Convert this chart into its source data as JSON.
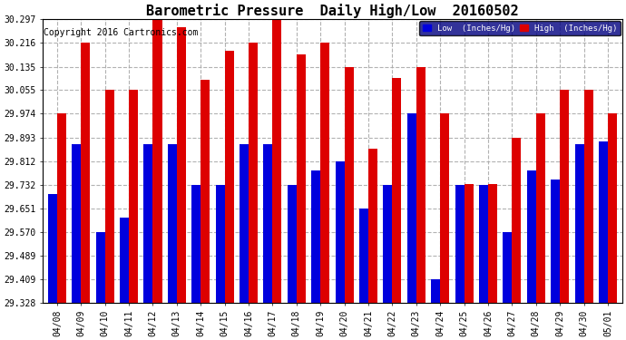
{
  "title": "Barometric Pressure  Daily High/Low  20160502",
  "copyright": "Copyright 2016 Cartronics.com",
  "dates": [
    "04/08",
    "04/09",
    "04/10",
    "04/11",
    "04/12",
    "04/13",
    "04/14",
    "04/15",
    "04/16",
    "04/17",
    "04/18",
    "04/19",
    "04/20",
    "04/21",
    "04/22",
    "04/23",
    "04/24",
    "04/25",
    "04/26",
    "04/27",
    "04/28",
    "04/29",
    "04/30",
    "05/01"
  ],
  "low": [
    29.7,
    29.87,
    29.57,
    29.62,
    29.87,
    29.87,
    29.732,
    29.732,
    29.87,
    29.87,
    29.732,
    29.78,
    29.812,
    29.651,
    29.732,
    29.974,
    29.409,
    29.732,
    29.732,
    29.57,
    29.78,
    29.75,
    29.87,
    29.88
  ],
  "high": [
    29.974,
    30.216,
    30.055,
    30.055,
    30.297,
    30.27,
    30.09,
    30.19,
    30.216,
    30.297,
    30.178,
    30.216,
    30.135,
    29.855,
    30.097,
    30.135,
    29.974,
    29.733,
    29.733,
    29.893,
    29.974,
    30.055,
    30.055,
    29.974
  ],
  "ylim": [
    29.328,
    30.297
  ],
  "yticks": [
    29.328,
    29.409,
    29.489,
    29.57,
    29.651,
    29.732,
    29.812,
    29.893,
    29.974,
    30.055,
    30.135,
    30.216,
    30.297
  ],
  "low_color": "#0000dd",
  "high_color": "#dd0000",
  "bg_color": "#ffffff",
  "grid_color": "#aaaaaa",
  "legend_low_label": "Low  (Inches/Hg)",
  "legend_high_label": "High  (Inches/Hg)",
  "title_fontsize": 11,
  "copyright_fontsize": 7,
  "tick_fontsize": 7,
  "bar_width": 0.38
}
